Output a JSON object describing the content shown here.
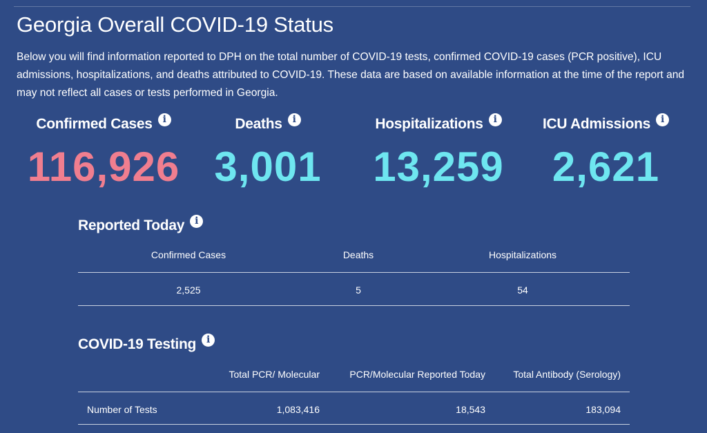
{
  "page": {
    "title": "Georgia Overall COVID-19 Status",
    "intro": "Below you will find information reported to DPH on the total number of COVID-19 tests, confirmed COVID-19 cases (PCR positive), ICU admissions, hospitalizations, and deaths attributed to COVID-19. These data are based on available information at the time of the report and may not reflect all cases or tests performed in Georgia."
  },
  "stats": [
    {
      "label": "Confirmed Cases",
      "value": "116,926",
      "color": "#f07e8f"
    },
    {
      "label": "Deaths",
      "value": "3,001",
      "color": "#6ee6f0"
    },
    {
      "label": "Hospitalizations",
      "value": "13,259",
      "color": "#6ee6f0"
    },
    {
      "label": "ICU Admissions",
      "value": "2,621",
      "color": "#6ee6f0"
    }
  ],
  "reported_today": {
    "title": "Reported Today",
    "headers": [
      "Confirmed Cases",
      "Deaths",
      "Hospitalizations"
    ],
    "values": [
      "2,525",
      "5",
      "54"
    ]
  },
  "testing": {
    "title": "COVID-19 Testing",
    "headers": [
      "Total PCR/ Molecular",
      "PCR/Molecular Reported Today",
      "Total Antibody (Serology)"
    ],
    "row_label": "Number of Tests",
    "values": [
      "1,083,416",
      "18,543",
      "183,094"
    ]
  },
  "icons": {
    "info": "info-icon",
    "info_glyph": "i"
  },
  "colors": {
    "background": "#2f4b86",
    "cases": "#f07e8f",
    "others": "#6ee6f0"
  }
}
